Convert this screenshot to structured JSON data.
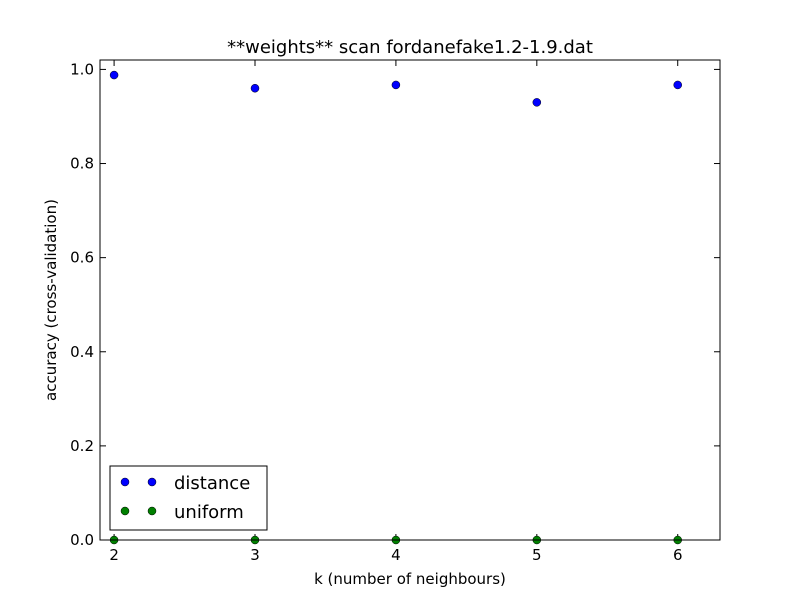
{
  "chart_data": {
    "type": "scatter",
    "title": "**weights** scan fordanefake1.2-1.9.dat",
    "xlabel": "k (number of neighbours)",
    "ylabel": "accuracy (cross-validation)",
    "xlim": [
      1.9,
      6.3
    ],
    "ylim": [
      0.0,
      1.02
    ],
    "xticks": [
      "2",
      "3",
      "4",
      "5",
      "6"
    ],
    "yticks": [
      "0.0",
      "0.2",
      "0.4",
      "0.6",
      "0.8",
      "1.0"
    ],
    "grid": false,
    "legend_position": "lower-left",
    "series": [
      {
        "name": "distance",
        "color": "#0000ff",
        "x": [
          2,
          3,
          4,
          5,
          6
        ],
        "y": [
          0.988,
          0.96,
          0.967,
          0.93,
          0.967
        ]
      },
      {
        "name": "uniform",
        "color": "#008000",
        "x": [
          2,
          3,
          4,
          5,
          6
        ],
        "y": [
          0.0,
          0.0,
          0.0,
          0.0,
          0.0
        ]
      }
    ]
  }
}
